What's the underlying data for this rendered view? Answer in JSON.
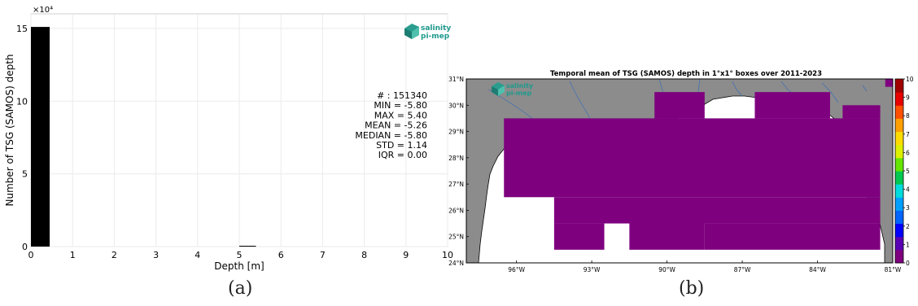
{
  "logo": {
    "line1": "salinity",
    "line2": "pi-mep",
    "color": "#1f9a8c"
  },
  "chart_data": [
    {
      "type": "bar",
      "panel": "(a)",
      "xlabel": "Depth [m]",
      "ylabel": "Number of TSG (SAMOS) depth",
      "y_multiplier": "×10⁴",
      "xlim": [
        0,
        10
      ],
      "ylim": [
        0,
        16
      ],
      "xticks": [
        "0",
        "1",
        "2",
        "3",
        "4",
        "5",
        "6",
        "7",
        "8",
        "9",
        "10"
      ],
      "yticks": [
        "0",
        "5",
        "10",
        "15"
      ],
      "grid": true,
      "bar_color": "#000000",
      "bins": [
        {
          "x0": 0.0,
          "x1": 0.45,
          "value": 15.1
        },
        {
          "x0": 5.0,
          "x1": 5.4,
          "value": 0.02
        }
      ],
      "stats": [
        "# : 151340",
        "MIN = -5.80",
        "MAX =  5.40",
        "MEAN = -5.26",
        "MEDIAN = -5.80",
        "STD = 1.14",
        "IQR = 0.00"
      ]
    },
    {
      "type": "heatmap",
      "panel": "(b)",
      "title": "Temporal mean of TSG (SAMOS) depth in 1°x1° boxes over 2011-2023",
      "xlim": [
        -98,
        -81
      ],
      "ylim": [
        24,
        31
      ],
      "xticks": [
        {
          "v": -96,
          "label": "96°W"
        },
        {
          "v": -93,
          "label": "93°W"
        },
        {
          "v": -90,
          "label": "90°W"
        },
        {
          "v": -87,
          "label": "87°W"
        },
        {
          "v": -84,
          "label": "84°W"
        },
        {
          "v": -81,
          "label": "81°W"
        }
      ],
      "yticks": [
        {
          "v": 24,
          "label": "24°N"
        },
        {
          "v": 25,
          "label": "25°N"
        },
        {
          "v": 26,
          "label": "26°N"
        },
        {
          "v": 27,
          "label": "27°N"
        },
        {
          "v": 28,
          "label": "28°N"
        },
        {
          "v": 29,
          "label": "29°N"
        },
        {
          "v": 30,
          "label": "30°N"
        },
        {
          "v": 31,
          "label": "31°N"
        }
      ],
      "land_color": "#8c8c8c",
      "cell_color": "#7f007f",
      "cell_value": 0,
      "cells": [
        {
          "lon0": -96.5,
          "lon1": -81.5,
          "lat0": 26.5,
          "lat1": 29.5
        },
        {
          "lon0": -94.5,
          "lon1": -81.5,
          "lat0": 25.5,
          "lat1": 26.5
        },
        {
          "lon0": -94.5,
          "lon1": -92.5,
          "lat0": 24.5,
          "lat1": 25.5
        },
        {
          "lon0": -88.5,
          "lon1": -81.5,
          "lat0": 24.5,
          "lat1": 25.5
        },
        {
          "lon0": -91.5,
          "lon1": -88.5,
          "lat0": 24.5,
          "lat1": 26.0
        },
        {
          "lon0": -90.5,
          "lon1": -88.5,
          "lat0": 29.5,
          "lat1": 30.5
        },
        {
          "lon0": -86.5,
          "lon1": -83.5,
          "lat0": 29.5,
          "lat1": 30.5
        },
        {
          "lon0": -83.0,
          "lon1": -81.5,
          "lat0": 29.5,
          "lat1": 30.0
        },
        {
          "lon0": -81.3,
          "lon1": -81.0,
          "lat0": 30.7,
          "lat1": 31.0
        }
      ],
      "colorbar": {
        "ticks": [
          "0",
          "1",
          "2",
          "3",
          "4",
          "5",
          "6",
          "7",
          "8",
          "9",
          "10"
        ],
        "min": 0,
        "max": 10,
        "colors": [
          "#7f007f",
          "#5a00b4",
          "#0000ff",
          "#0064ff",
          "#00a0ff",
          "#00dcdc",
          "#00c850",
          "#64e600",
          "#dcf000",
          "#ffdc00",
          "#ffa000",
          "#ff5000",
          "#e60000",
          "#a00000"
        ]
      }
    }
  ],
  "captions": [
    "(a)",
    "(b)"
  ]
}
